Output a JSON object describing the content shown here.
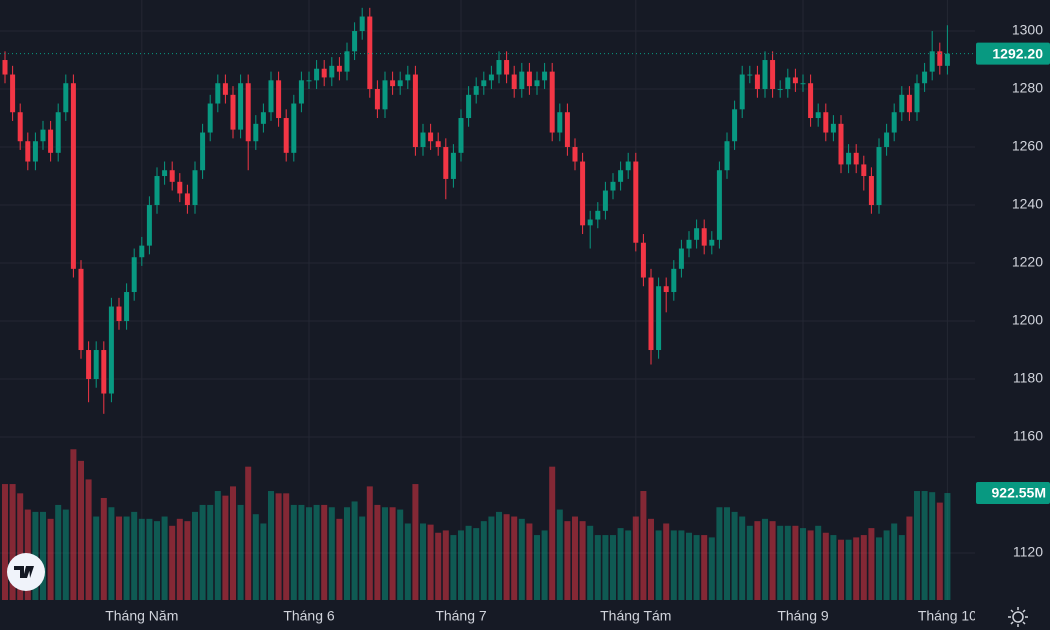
{
  "chart_data": {
    "type": "candlestick",
    "ylim": [
      1103.8,
      1310.7
    ],
    "yticks": [
      1120,
      1160,
      1180,
      1200,
      1220,
      1240,
      1260,
      1280,
      1300
    ],
    "volume_ylim": [
      0,
      1380
    ],
    "grid": true,
    "up_color": "#089981",
    "down_color": "#f23645",
    "last_price": {
      "value": 1292.2,
      "label": "1292.20"
    },
    "last_volume": {
      "value": 922.55,
      "label": "922.55M"
    },
    "x_labels": [
      {
        "index": 18,
        "label": "Tháng Năm"
      },
      {
        "index": 40,
        "label": "Tháng 6"
      },
      {
        "index": 60,
        "label": "Tháng 7"
      },
      {
        "index": 83,
        "label": "Tháng Tám"
      },
      {
        "index": 105,
        "label": "Tháng 9"
      },
      {
        "index": 124,
        "label": "Tháng 10"
      }
    ],
    "open": [
      1290,
      1285,
      1272,
      1262,
      1255,
      1262,
      1266,
      1258,
      1272,
      1282,
      1218,
      1190,
      1180,
      1190,
      1175,
      1205,
      1200,
      1210,
      1222,
      1226,
      1240,
      1250,
      1252,
      1248,
      1244,
      1240,
      1252,
      1265,
      1275,
      1282,
      1278,
      1266,
      1282,
      1262,
      1268,
      1272,
      1283,
      1270,
      1258,
      1275,
      1283,
      1283,
      1287,
      1284,
      1288,
      1286,
      1293,
      1300,
      1305,
      1280,
      1273,
      1283,
      1281,
      1283,
      1285,
      1260,
      1265,
      1262,
      1260,
      1249,
      1258,
      1270,
      1278,
      1281,
      1283,
      1285,
      1290,
      1285,
      1280,
      1286,
      1281,
      1283,
      1286,
      1265,
      1272,
      1260,
      1255,
      1233,
      1235,
      1238,
      1245,
      1248,
      1252,
      1255,
      1227,
      1215,
      1190,
      1212,
      1210,
      1218,
      1225,
      1228,
      1232,
      1226,
      1228,
      1252,
      1262,
      1273,
      1285,
      1285,
      1280,
      1290,
      1280,
      1280,
      1284,
      1282,
      1282,
      1270,
      1272,
      1265,
      1268,
      1254,
      1258,
      1254,
      1250,
      1240,
      1260,
      1265,
      1272,
      1278,
      1272,
      1282,
      1286,
      1293,
      1288
    ],
    "high": [
      1293,
      1288,
      1275,
      1265,
      1265,
      1269,
      1269,
      1275,
      1285,
      1285,
      1221,
      1193,
      1193,
      1193,
      1208,
      1208,
      1213,
      1225,
      1229,
      1243,
      1253,
      1255,
      1255,
      1251,
      1247,
      1255,
      1268,
      1278,
      1285,
      1285,
      1281,
      1285,
      1285,
      1271,
      1275,
      1286,
      1286,
      1273,
      1278,
      1286,
      1286,
      1290,
      1290,
      1291,
      1291,
      1296,
      1303,
      1308,
      1308,
      1283,
      1286,
      1286,
      1286,
      1288,
      1288,
      1268,
      1268,
      1265,
      1263,
      1261,
      1273,
      1281,
      1284,
      1286,
      1288,
      1293,
      1293,
      1288,
      1289,
      1289,
      1286,
      1289,
      1289,
      1275,
      1275,
      1263,
      1258,
      1238,
      1241,
      1248,
      1251,
      1255,
      1258,
      1258,
      1230,
      1218,
      1215,
      1215,
      1221,
      1228,
      1231,
      1235,
      1235,
      1231,
      1255,
      1265,
      1276,
      1288,
      1288,
      1288,
      1293,
      1293,
      1283,
      1287,
      1287,
      1285,
      1285,
      1275,
      1275,
      1271,
      1271,
      1261,
      1261,
      1257,
      1253,
      1263,
      1268,
      1275,
      1281,
      1281,
      1285,
      1289,
      1300,
      1296,
      1302
    ],
    "low": [
      1282,
      1269,
      1259,
      1252,
      1252,
      1259,
      1255,
      1255,
      1269,
      1215,
      1187,
      1172,
      1177,
      1168,
      1172,
      1197,
      1197,
      1207,
      1219,
      1223,
      1237,
      1247,
      1245,
      1241,
      1237,
      1237,
      1249,
      1262,
      1272,
      1275,
      1263,
      1263,
      1252,
      1259,
      1265,
      1269,
      1267,
      1255,
      1255,
      1272,
      1280,
      1280,
      1281,
      1281,
      1283,
      1283,
      1290,
      1297,
      1277,
      1270,
      1270,
      1278,
      1278,
      1280,
      1257,
      1257,
      1259,
      1257,
      1242,
      1246,
      1255,
      1267,
      1275,
      1278,
      1280,
      1282,
      1282,
      1277,
      1277,
      1278,
      1278,
      1280,
      1262,
      1262,
      1257,
      1252,
      1230,
      1225,
      1232,
      1235,
      1242,
      1245,
      1249,
      1224,
      1212,
      1185,
      1187,
      1203,
      1207,
      1215,
      1222,
      1225,
      1223,
      1223,
      1225,
      1249,
      1259,
      1270,
      1282,
      1277,
      1277,
      1277,
      1277,
      1277,
      1279,
      1279,
      1267,
      1267,
      1262,
      1262,
      1251,
      1251,
      1251,
      1245,
      1237,
      1237,
      1257,
      1262,
      1269,
      1269,
      1269,
      1279,
      1283,
      1285,
      1285
    ],
    "close": [
      1285,
      1272,
      1262,
      1255,
      1262,
      1266,
      1258,
      1272,
      1282,
      1218,
      1190,
      1180,
      1190,
      1175,
      1205,
      1200,
      1210,
      1222,
      1226,
      1240,
      1250,
      1252,
      1248,
      1244,
      1240,
      1252,
      1265,
      1275,
      1282,
      1278,
      1266,
      1282,
      1262,
      1268,
      1272,
      1283,
      1270,
      1258,
      1275,
      1283,
      1283,
      1287,
      1284,
      1288,
      1286,
      1293,
      1300,
      1305,
      1280,
      1273,
      1283,
      1281,
      1283,
      1285,
      1260,
      1265,
      1262,
      1260,
      1249,
      1258,
      1270,
      1278,
      1281,
      1283,
      1285,
      1290,
      1285,
      1280,
      1286,
      1281,
      1283,
      1286,
      1265,
      1272,
      1260,
      1255,
      1233,
      1235,
      1238,
      1245,
      1248,
      1252,
      1255,
      1227,
      1215,
      1190,
      1212,
      1210,
      1218,
      1225,
      1228,
      1232,
      1226,
      1228,
      1252,
      1262,
      1273,
      1285,
      1285,
      1280,
      1290,
      1280,
      1280,
      1284,
      1282,
      1282,
      1270,
      1272,
      1265,
      1268,
      1254,
      1258,
      1254,
      1250,
      1240,
      1260,
      1265,
      1272,
      1278,
      1272,
      1282,
      1286,
      1293,
      1288,
      1292.2
    ],
    "volume": [
      1000,
      1000,
      920,
      780,
      760,
      760,
      700,
      820,
      780,
      1300,
      1200,
      1040,
      720,
      880,
      800,
      720,
      720,
      760,
      700,
      700,
      680,
      720,
      640,
      700,
      680,
      760,
      820,
      820,
      940,
      900,
      980,
      820,
      1150,
      740,
      660,
      940,
      920,
      920,
      820,
      820,
      800,
      820,
      820,
      800,
      700,
      800,
      850,
      720,
      980,
      820,
      800,
      800,
      780,
      660,
      1000,
      660,
      650,
      580,
      600,
      560,
      600,
      640,
      620,
      680,
      720,
      760,
      740,
      720,
      700,
      660,
      560,
      600,
      1150,
      780,
      680,
      720,
      680,
      640,
      560,
      560,
      560,
      620,
      600,
      720,
      940,
      700,
      600,
      660,
      600,
      600,
      580,
      560,
      560,
      540,
      800,
      800,
      760,
      720,
      640,
      680,
      700,
      680,
      640,
      640,
      640,
      620,
      600,
      640,
      580,
      560,
      520,
      520,
      540,
      560,
      620,
      540,
      600,
      660,
      560,
      720,
      940,
      940,
      930,
      840,
      922.55
    ]
  }
}
